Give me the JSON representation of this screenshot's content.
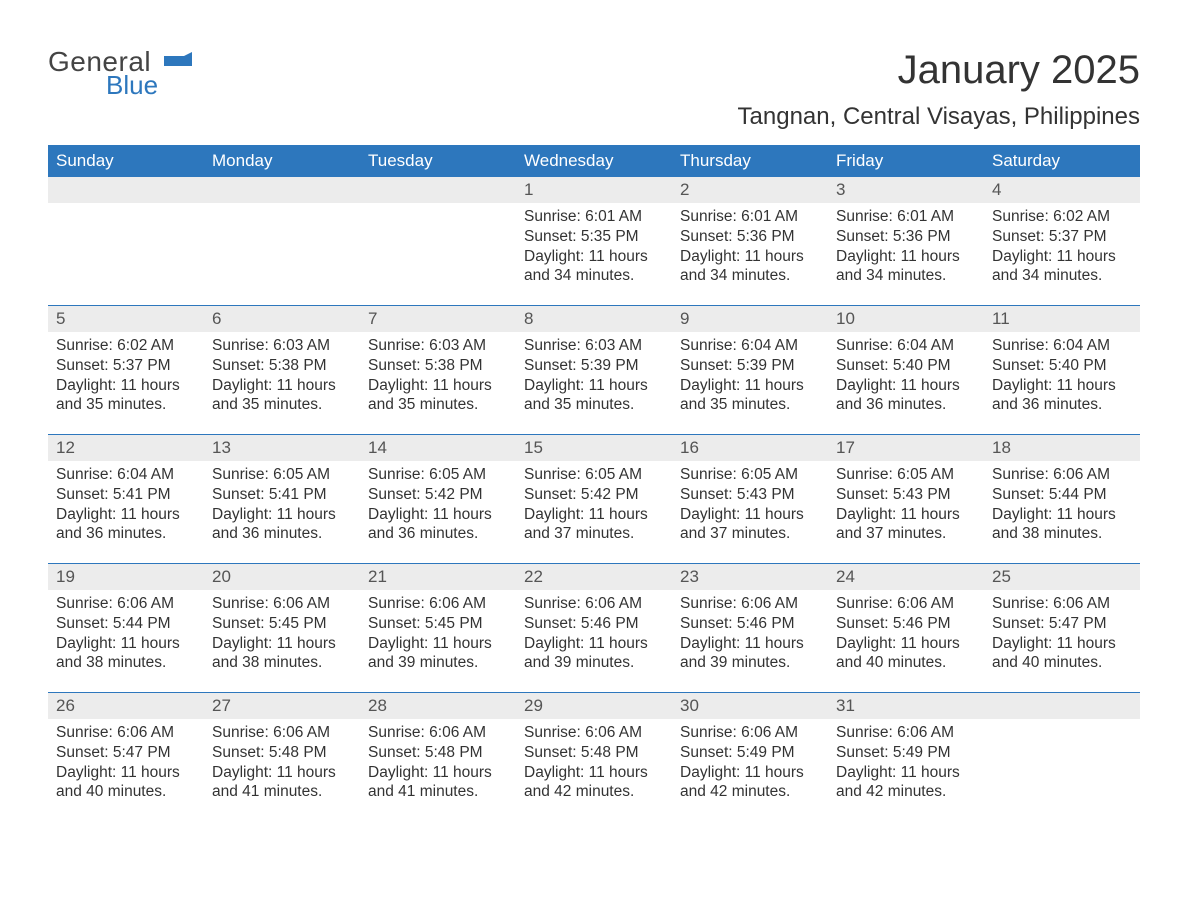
{
  "logo": {
    "general": "General",
    "blue": "Blue",
    "accent_color": "#2d77bd"
  },
  "header": {
    "month_title": "January 2025",
    "location": "Tangnan, Central Visayas, Philippines"
  },
  "colors": {
    "header_bg": "#2d77bd",
    "header_text": "#ffffff",
    "daynum_bg": "#ececec",
    "border": "#2d77bd",
    "body_text": "#333333",
    "page_bg": "#ffffff"
  },
  "days_of_week": [
    "Sunday",
    "Monday",
    "Tuesday",
    "Wednesday",
    "Thursday",
    "Friday",
    "Saturday"
  ],
  "weeks": [
    [
      null,
      null,
      null,
      {
        "n": "1",
        "sr": "Sunrise: 6:01 AM",
        "ss": "Sunset: 5:35 PM",
        "dl": "Daylight: 11 hours and 34 minutes."
      },
      {
        "n": "2",
        "sr": "Sunrise: 6:01 AM",
        "ss": "Sunset: 5:36 PM",
        "dl": "Daylight: 11 hours and 34 minutes."
      },
      {
        "n": "3",
        "sr": "Sunrise: 6:01 AM",
        "ss": "Sunset: 5:36 PM",
        "dl": "Daylight: 11 hours and 34 minutes."
      },
      {
        "n": "4",
        "sr": "Sunrise: 6:02 AM",
        "ss": "Sunset: 5:37 PM",
        "dl": "Daylight: 11 hours and 34 minutes."
      }
    ],
    [
      {
        "n": "5",
        "sr": "Sunrise: 6:02 AM",
        "ss": "Sunset: 5:37 PM",
        "dl": "Daylight: 11 hours and 35 minutes."
      },
      {
        "n": "6",
        "sr": "Sunrise: 6:03 AM",
        "ss": "Sunset: 5:38 PM",
        "dl": "Daylight: 11 hours and 35 minutes."
      },
      {
        "n": "7",
        "sr": "Sunrise: 6:03 AM",
        "ss": "Sunset: 5:38 PM",
        "dl": "Daylight: 11 hours and 35 minutes."
      },
      {
        "n": "8",
        "sr": "Sunrise: 6:03 AM",
        "ss": "Sunset: 5:39 PM",
        "dl": "Daylight: 11 hours and 35 minutes."
      },
      {
        "n": "9",
        "sr": "Sunrise: 6:04 AM",
        "ss": "Sunset: 5:39 PM",
        "dl": "Daylight: 11 hours and 35 minutes."
      },
      {
        "n": "10",
        "sr": "Sunrise: 6:04 AM",
        "ss": "Sunset: 5:40 PM",
        "dl": "Daylight: 11 hours and 36 minutes."
      },
      {
        "n": "11",
        "sr": "Sunrise: 6:04 AM",
        "ss": "Sunset: 5:40 PM",
        "dl": "Daylight: 11 hours and 36 minutes."
      }
    ],
    [
      {
        "n": "12",
        "sr": "Sunrise: 6:04 AM",
        "ss": "Sunset: 5:41 PM",
        "dl": "Daylight: 11 hours and 36 minutes."
      },
      {
        "n": "13",
        "sr": "Sunrise: 6:05 AM",
        "ss": "Sunset: 5:41 PM",
        "dl": "Daylight: 11 hours and 36 minutes."
      },
      {
        "n": "14",
        "sr": "Sunrise: 6:05 AM",
        "ss": "Sunset: 5:42 PM",
        "dl": "Daylight: 11 hours and 36 minutes."
      },
      {
        "n": "15",
        "sr": "Sunrise: 6:05 AM",
        "ss": "Sunset: 5:42 PM",
        "dl": "Daylight: 11 hours and 37 minutes."
      },
      {
        "n": "16",
        "sr": "Sunrise: 6:05 AM",
        "ss": "Sunset: 5:43 PM",
        "dl": "Daylight: 11 hours and 37 minutes."
      },
      {
        "n": "17",
        "sr": "Sunrise: 6:05 AM",
        "ss": "Sunset: 5:43 PM",
        "dl": "Daylight: 11 hours and 37 minutes."
      },
      {
        "n": "18",
        "sr": "Sunrise: 6:06 AM",
        "ss": "Sunset: 5:44 PM",
        "dl": "Daylight: 11 hours and 38 minutes."
      }
    ],
    [
      {
        "n": "19",
        "sr": "Sunrise: 6:06 AM",
        "ss": "Sunset: 5:44 PM",
        "dl": "Daylight: 11 hours and 38 minutes."
      },
      {
        "n": "20",
        "sr": "Sunrise: 6:06 AM",
        "ss": "Sunset: 5:45 PM",
        "dl": "Daylight: 11 hours and 38 minutes."
      },
      {
        "n": "21",
        "sr": "Sunrise: 6:06 AM",
        "ss": "Sunset: 5:45 PM",
        "dl": "Daylight: 11 hours and 39 minutes."
      },
      {
        "n": "22",
        "sr": "Sunrise: 6:06 AM",
        "ss": "Sunset: 5:46 PM",
        "dl": "Daylight: 11 hours and 39 minutes."
      },
      {
        "n": "23",
        "sr": "Sunrise: 6:06 AM",
        "ss": "Sunset: 5:46 PM",
        "dl": "Daylight: 11 hours and 39 minutes."
      },
      {
        "n": "24",
        "sr": "Sunrise: 6:06 AM",
        "ss": "Sunset: 5:46 PM",
        "dl": "Daylight: 11 hours and 40 minutes."
      },
      {
        "n": "25",
        "sr": "Sunrise: 6:06 AM",
        "ss": "Sunset: 5:47 PM",
        "dl": "Daylight: 11 hours and 40 minutes."
      }
    ],
    [
      {
        "n": "26",
        "sr": "Sunrise: 6:06 AM",
        "ss": "Sunset: 5:47 PM",
        "dl": "Daylight: 11 hours and 40 minutes."
      },
      {
        "n": "27",
        "sr": "Sunrise: 6:06 AM",
        "ss": "Sunset: 5:48 PM",
        "dl": "Daylight: 11 hours and 41 minutes."
      },
      {
        "n": "28",
        "sr": "Sunrise: 6:06 AM",
        "ss": "Sunset: 5:48 PM",
        "dl": "Daylight: 11 hours and 41 minutes."
      },
      {
        "n": "29",
        "sr": "Sunrise: 6:06 AM",
        "ss": "Sunset: 5:48 PM",
        "dl": "Daylight: 11 hours and 42 minutes."
      },
      {
        "n": "30",
        "sr": "Sunrise: 6:06 AM",
        "ss": "Sunset: 5:49 PM",
        "dl": "Daylight: 11 hours and 42 minutes."
      },
      {
        "n": "31",
        "sr": "Sunrise: 6:06 AM",
        "ss": "Sunset: 5:49 PM",
        "dl": "Daylight: 11 hours and 42 minutes."
      },
      null
    ]
  ]
}
